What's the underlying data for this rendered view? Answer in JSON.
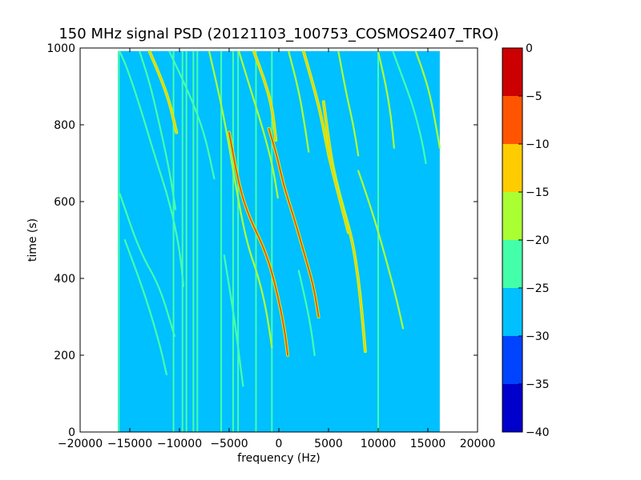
{
  "chart_data": {
    "type": "heatmap",
    "title": "150 MHz signal PSD (20121103_100753_COSMOS2407_TRO)",
    "xlabel": "frequency (Hz)",
    "ylabel": "time (s)",
    "xlim": [
      -20000,
      20000
    ],
    "ylim": [
      0,
      1000
    ],
    "x_ticks": [
      -20000,
      -15000,
      -10000,
      -5000,
      0,
      5000,
      10000,
      15000,
      20000
    ],
    "y_ticks": [
      0,
      200,
      400,
      600,
      800,
      1000
    ],
    "data_extent": {
      "x": [
        -16200,
        16200
      ],
      "y": [
        0,
        992
      ]
    },
    "background_level": -28,
    "colorbar": {
      "levels": [
        -40,
        -35,
        -30,
        -25,
        -20,
        -15,
        -10,
        -5,
        0
      ],
      "colors": [
        "#0000cc",
        "#0044ff",
        "#00c0ff",
        "#44ffaa",
        "#aaff33",
        "#ffcc00",
        "#ff5500",
        "#cc0000"
      ],
      "ticks": [
        0,
        -5,
        -10,
        -15,
        -20,
        -25,
        -30,
        -35,
        -40
      ]
    },
    "vertical_lines": [
      {
        "x": -16100,
        "level": -24
      },
      {
        "x": -10600,
        "level": -24
      },
      {
        "x": -9700,
        "level": -23
      },
      {
        "x": -9300,
        "level": -22
      },
      {
        "x": -8600,
        "level": -24
      },
      {
        "x": -8200,
        "level": -24
      },
      {
        "x": -5800,
        "level": -23
      },
      {
        "x": -4600,
        "level": -23
      },
      {
        "x": -4100,
        "level": -24
      },
      {
        "x": -2300,
        "level": -24
      },
      {
        "x": -700,
        "level": -25
      },
      {
        "x": 10000,
        "level": -25
      }
    ],
    "doppler_traces": [
      {
        "level": -22,
        "points": [
          [
            -16000,
            620
          ],
          [
            -14000,
            470
          ],
          [
            -12000,
            380
          ],
          [
            -10500,
            250
          ]
        ]
      },
      {
        "level": -22,
        "points": [
          [
            -16000,
            990
          ],
          [
            -15300,
            950
          ],
          [
            -14000,
            850
          ],
          [
            -12500,
            720
          ],
          [
            -11000,
            600
          ],
          [
            -10000,
            480
          ],
          [
            -9600,
            380
          ]
        ]
      },
      {
        "level": -12,
        "points": [
          [
            -13000,
            990
          ],
          [
            -12000,
            930
          ],
          [
            -11000,
            860
          ],
          [
            -10300,
            780
          ]
        ]
      },
      {
        "level": -22,
        "points": [
          [
            -11000,
            990
          ],
          [
            -9000,
            880
          ],
          [
            -7500,
            780
          ],
          [
            -6500,
            660
          ]
        ]
      },
      {
        "level": -16,
        "points": [
          [
            -7000,
            990
          ],
          [
            -5500,
            820
          ],
          [
            -4200,
            620
          ],
          [
            -3200,
            490
          ],
          [
            -2000,
            400
          ],
          [
            -1200,
            310
          ],
          [
            -700,
            220
          ]
        ]
      },
      {
        "level": -9,
        "points": [
          [
            -5000,
            780
          ],
          [
            -4000,
            640
          ],
          [
            -3000,
            560
          ],
          [
            -1500,
            480
          ],
          [
            -500,
            400
          ],
          [
            500,
            280
          ],
          [
            900,
            200
          ]
        ]
      },
      {
        "level": -14,
        "points": [
          [
            -2500,
            990
          ],
          [
            -1500,
            920
          ],
          [
            -700,
            850
          ],
          [
            -300,
            760
          ]
        ]
      },
      {
        "level": -9,
        "points": [
          [
            -1000,
            790
          ],
          [
            -200,
            720
          ],
          [
            500,
            640
          ],
          [
            1500,
            560
          ],
          [
            2500,
            470
          ],
          [
            3500,
            380
          ],
          [
            4000,
            300
          ]
        ]
      },
      {
        "level": -18,
        "points": [
          [
            -4000,
            990
          ],
          [
            -2700,
            880
          ],
          [
            -1500,
            780
          ],
          [
            -600,
            690
          ],
          [
            -100,
            610
          ]
        ]
      },
      {
        "level": -16,
        "points": [
          [
            1000,
            990
          ],
          [
            2000,
            890
          ],
          [
            2600,
            800
          ],
          [
            3000,
            730
          ]
        ]
      },
      {
        "level": -11,
        "points": [
          [
            4500,
            860
          ],
          [
            5000,
            760
          ],
          [
            5500,
            680
          ],
          [
            6500,
            580
          ],
          [
            7400,
            500
          ],
          [
            8000,
            400
          ],
          [
            8400,
            300
          ],
          [
            8700,
            210
          ]
        ]
      },
      {
        "level": -14,
        "points": [
          [
            2500,
            990
          ],
          [
            3500,
            900
          ],
          [
            4300,
            820
          ],
          [
            5000,
            720
          ],
          [
            6000,
            620
          ],
          [
            7000,
            520
          ]
        ]
      },
      {
        "level": -18,
        "points": [
          [
            6000,
            990
          ],
          [
            6800,
            880
          ],
          [
            7500,
            800
          ],
          [
            8000,
            720
          ]
        ]
      },
      {
        "level": -18,
        "points": [
          [
            10000,
            990
          ],
          [
            10800,
            900
          ],
          [
            11300,
            820
          ],
          [
            11600,
            740
          ]
        ]
      },
      {
        "level": -21,
        "points": [
          [
            11500,
            990
          ],
          [
            12500,
            920
          ],
          [
            13500,
            850
          ],
          [
            14400,
            760
          ],
          [
            14800,
            700
          ]
        ]
      },
      {
        "level": -20,
        "points": [
          [
            13800,
            990
          ],
          [
            14500,
            940
          ],
          [
            15200,
            880
          ],
          [
            15800,
            800
          ],
          [
            16200,
            740
          ]
        ]
      },
      {
        "level": -20,
        "points": [
          [
            8000,
            680
          ],
          [
            8800,
            620
          ],
          [
            9800,
            540
          ],
          [
            11000,
            430
          ],
          [
            11900,
            340
          ],
          [
            12500,
            270
          ]
        ]
      },
      {
        "level": -22,
        "points": [
          [
            -15500,
            500
          ],
          [
            -13500,
            360
          ],
          [
            -12000,
            230
          ],
          [
            -11300,
            150
          ]
        ]
      },
      {
        "level": -22,
        "points": [
          [
            -14000,
            990
          ],
          [
            -13000,
            910
          ],
          [
            -12000,
            800
          ],
          [
            -11000,
            680
          ],
          [
            -10400,
            580
          ]
        ]
      },
      {
        "level": -22,
        "points": [
          [
            -5500,
            460
          ],
          [
            -4500,
            300
          ],
          [
            -4000,
            200
          ],
          [
            -3600,
            120
          ]
        ]
      },
      {
        "level": -22,
        "points": [
          [
            2000,
            420
          ],
          [
            2800,
            330
          ],
          [
            3300,
            260
          ],
          [
            3600,
            200
          ]
        ]
      }
    ]
  }
}
